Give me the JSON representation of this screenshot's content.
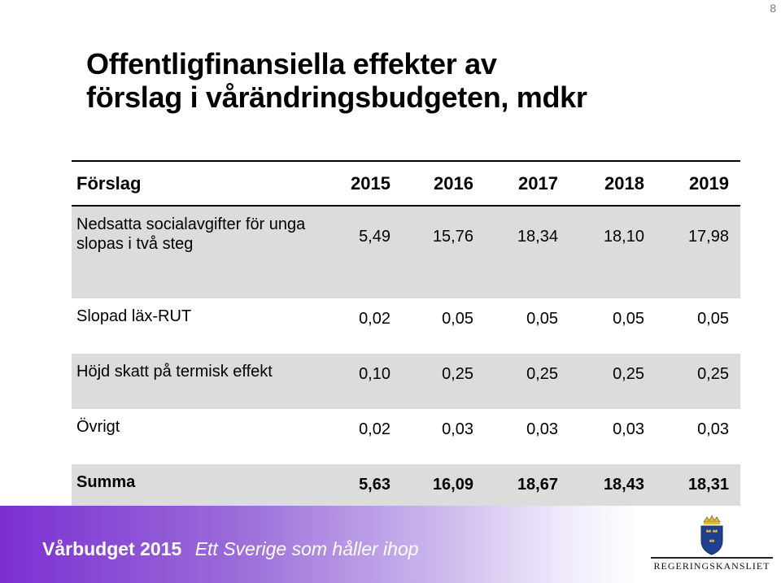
{
  "page_number": "8",
  "title": {
    "line1": "Offentligfinansiella effekter av",
    "line2": "förslag i vårändringsbudgeten, mdkr"
  },
  "table": {
    "header": {
      "label": "Förslag",
      "years": [
        "2015",
        "2016",
        "2017",
        "2018",
        "2019"
      ]
    },
    "rows": [
      {
        "label_line1": "Nedsatta socialavgifter för unga",
        "label_line2": "slopas i två steg",
        "values": [
          "5,49",
          "15,76",
          "18,34",
          "18,10",
          "17,98"
        ]
      },
      {
        "label": "Slopad läx-RUT",
        "values": [
          "0,02",
          "0,05",
          "0,05",
          "0,05",
          "0,05"
        ]
      },
      {
        "label": "Höjd skatt på termisk effekt",
        "values": [
          "0,10",
          "0,25",
          "0,25",
          "0,25",
          "0,25"
        ]
      },
      {
        "label": "Övrigt",
        "values": [
          "0,02",
          "0,03",
          "0,03",
          "0,03",
          "0,03"
        ]
      }
    ],
    "total": {
      "label": "Summa",
      "values": [
        "5,63",
        "16,09",
        "18,67",
        "18,43",
        "18,31"
      ]
    }
  },
  "footer": {
    "brand": "Vårbudget 2015",
    "slogan": "Ett Sverige som håller ihop",
    "logo_text": "REGERINGSKANSLIET",
    "band_color": "#7b2fd1"
  },
  "colors": {
    "row_shade": "#dcdcdc",
    "logo_blue": "#1f3f8f",
    "logo_gold": "#e2b93b"
  }
}
